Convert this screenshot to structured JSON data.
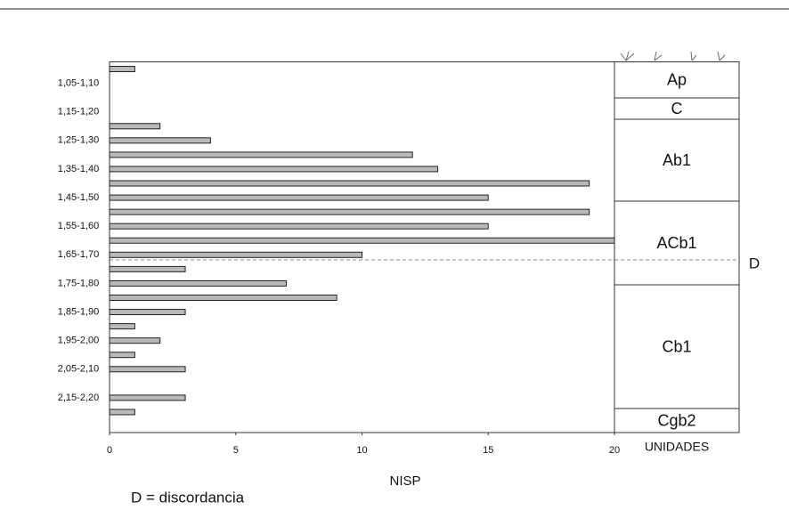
{
  "chart_data": {
    "type": "bar",
    "orientation": "horizontal",
    "categories": [
      null,
      "1,05-1,10",
      null,
      "1,15-1,20",
      null,
      "1,25-1,30",
      null,
      "1,35-1,40",
      null,
      "1,45-1,50",
      null,
      "1,55-1,60",
      null,
      "1,65-1,70",
      null,
      "1,75-1,80",
      null,
      "1,85-1,90",
      null,
      "1,95-2,00",
      null,
      "2,05-2,10",
      null,
      "2,15-2,20",
      null
    ],
    "values": [
      1,
      0,
      0,
      0,
      2,
      4,
      12,
      13,
      19,
      15,
      19,
      15,
      20,
      10,
      3,
      7,
      9,
      3,
      1,
      2,
      1,
      3,
      0,
      3,
      1
    ],
    "color": "#b9b9b9",
    "xlim": [
      0,
      20
    ],
    "xticks": [
      0,
      5,
      10,
      15,
      20
    ],
    "x_label": "NISP",
    "units_title": "UNIDADES",
    "horizons": [
      "Ap",
      "C",
      "Ab1",
      "ACb1",
      "Cb1",
      "Cgb2"
    ],
    "discordance_marker": "D",
    "annotation": "D = discordancia"
  }
}
